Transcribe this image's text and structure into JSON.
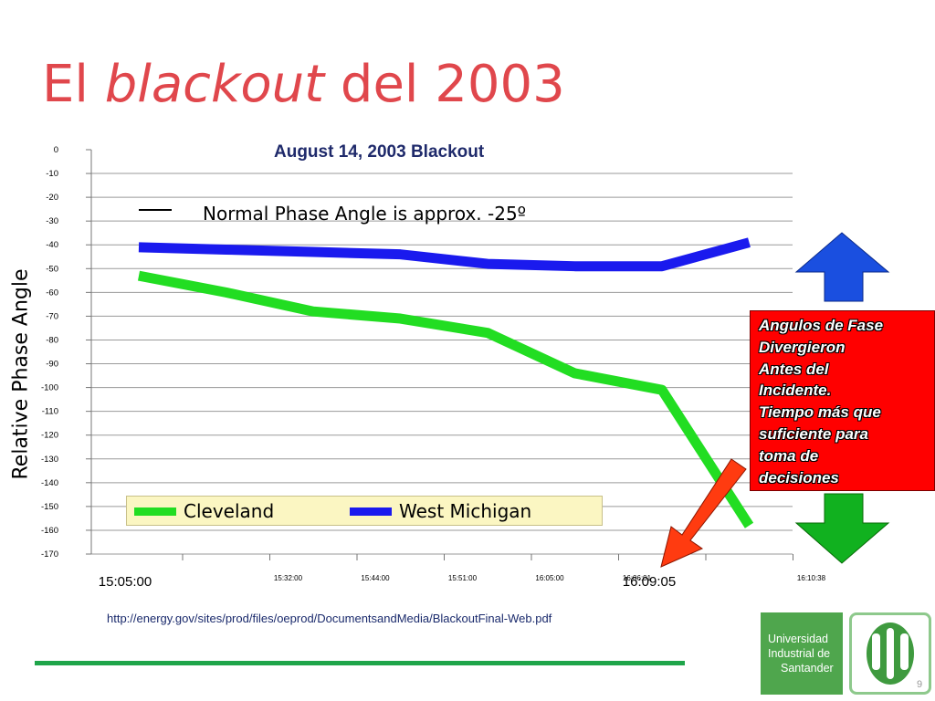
{
  "slide": {
    "title_plain_1": "El ",
    "title_italic": "blackout",
    "title_plain_2": " del 2003",
    "page_number": "9",
    "source_url": "http://energy.gov/sites/prod/files/oeprod/DocumentsandMedia/BlackoutFinal-Web.pdf",
    "callout_lines": [
      "Angulos de Fase",
      "Divergieron",
      "Antes del",
      "Incidente.",
      "Tiempo más que",
      "suficiente para",
      "toma de",
      "decisiones"
    ],
    "logo": {
      "lines": [
        "Universidad",
        "Industrial de",
        "Santander"
      ],
      "monogram": "UIS"
    },
    "arrows": {
      "up_color": "#1a4fe0",
      "down_color": "#11b11f",
      "pointer_color": "#ff3b10"
    },
    "highlight_tick": "16:09:05"
  },
  "chart_data": {
    "type": "line",
    "title": "August 14, 2003 Blackout",
    "ylabel": "Relative Phase Angle",
    "xlabel": "",
    "annotation": "Normal Phase Angle is approx. -25º",
    "ylim": [
      -170,
      0
    ],
    "y_ticks": [
      0,
      -10,
      -20,
      -30,
      -40,
      -50,
      -60,
      -70,
      -80,
      -90,
      -100,
      -110,
      -120,
      -130,
      -140,
      -150,
      -160,
      -170
    ],
    "x_ticks": [
      "15:05:00",
      "15:32:00",
      "15:44:00",
      "15:51:00",
      "16:05:00",
      "16:06:01",
      "16:09:05",
      "16:10:38"
    ],
    "large_ticks": [
      "15:05:00",
      "16:09:05"
    ],
    "grid": true,
    "series": [
      {
        "name": "Cleveland",
        "color": "#22dd22",
        "values": [
          -53,
          -60,
          -68,
          -71,
          -77,
          -94,
          -101,
          -158
        ]
      },
      {
        "name": "West Michigan",
        "color": "#1a1aee",
        "values": [
          -41,
          -42,
          -43,
          -44,
          -48,
          -49,
          -49,
          -39
        ]
      }
    ]
  }
}
